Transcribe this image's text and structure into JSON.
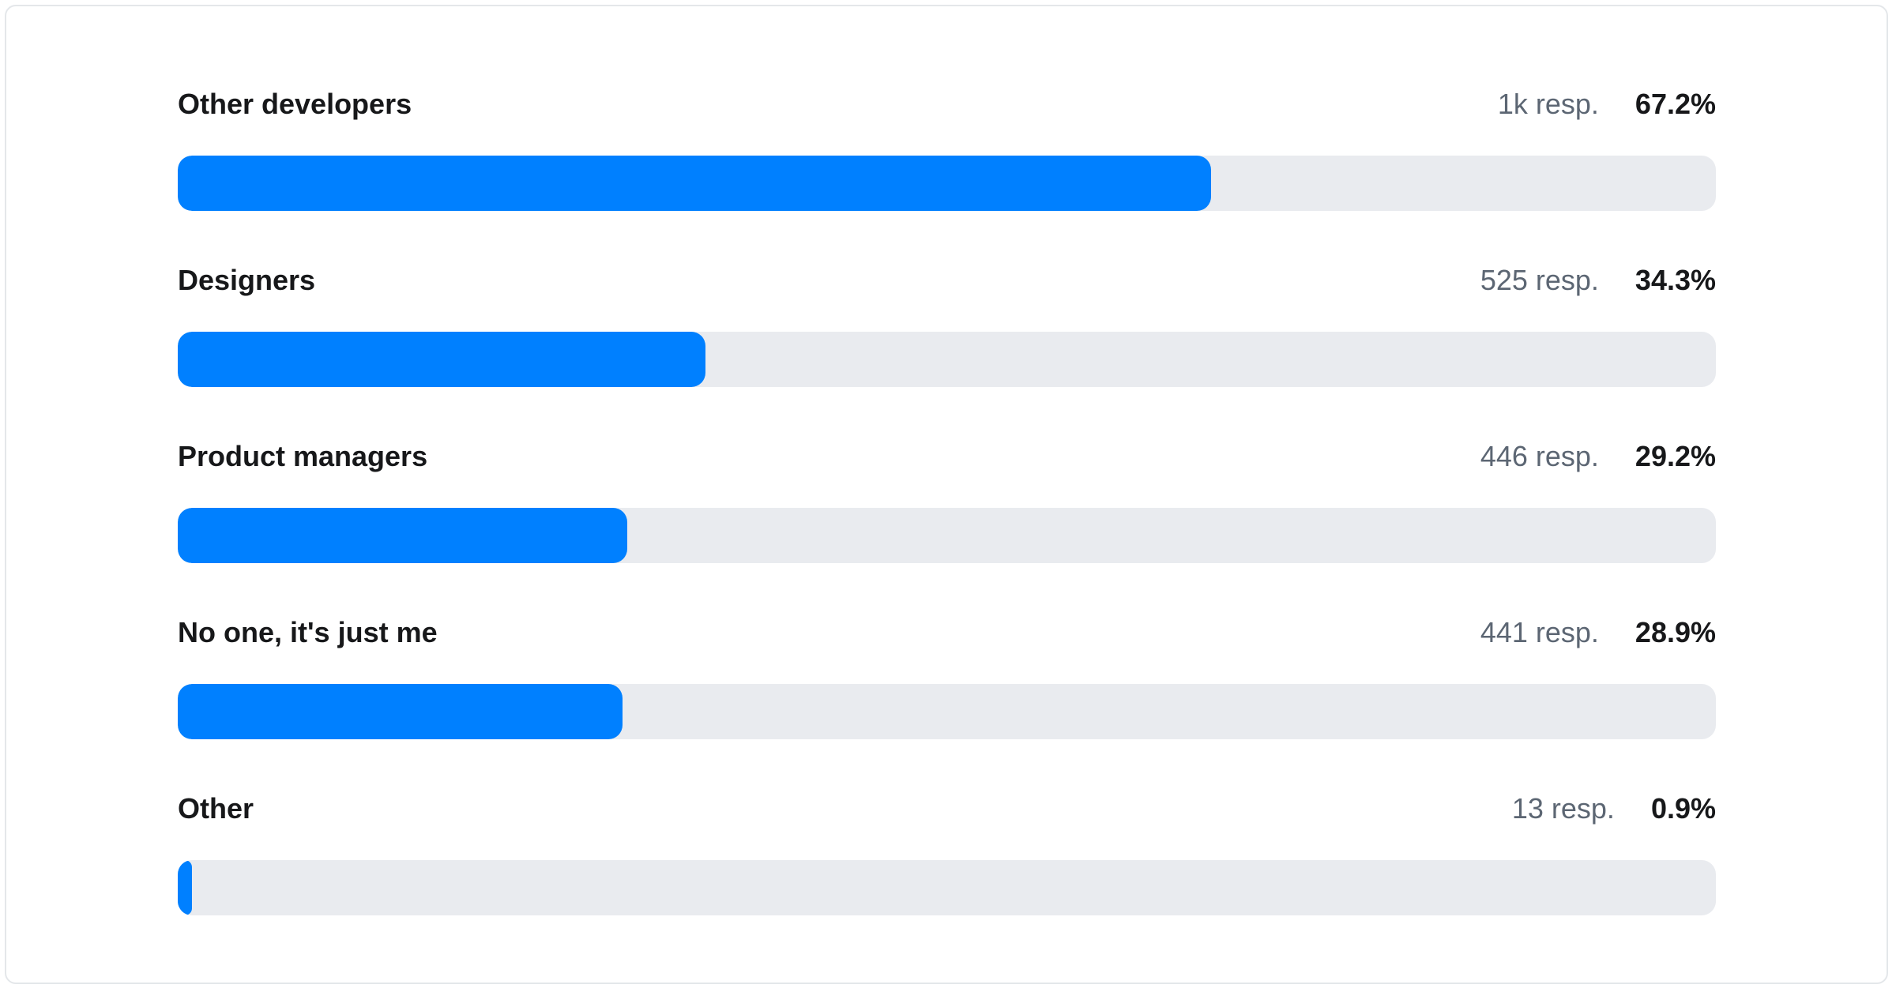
{
  "card": {
    "background": "#ffffff",
    "border_color": "#e4e7ea"
  },
  "chart_data": {
    "type": "bar",
    "orientation": "horizontal",
    "title": "",
    "xlabel": "",
    "ylabel": "",
    "xlim": [
      0,
      100
    ],
    "unit": "percent of respondents",
    "legend": false,
    "grid": false,
    "bar_color": "#0080ff",
    "track_color": "#e9ebef",
    "label_color": "#17181a",
    "responses_color": "#5c6673",
    "categories": [
      "Other developers",
      "Designers",
      "Product managers",
      "No one, it's just me",
      "Other"
    ],
    "values": [
      67.2,
      34.3,
      29.2,
      28.9,
      0.9
    ],
    "rows": [
      {
        "label": "Other developers",
        "responses": "1k resp.",
        "percent_label": "67.2%",
        "value": 67.2
      },
      {
        "label": "Designers",
        "responses": "525 resp.",
        "percent_label": "34.3%",
        "value": 34.3
      },
      {
        "label": "Product managers",
        "responses": "446 resp.",
        "percent_label": "29.2%",
        "value": 29.2
      },
      {
        "label": "No one, it's just me",
        "responses": "441 resp.",
        "percent_label": "28.9%",
        "value": 28.9
      },
      {
        "label": "Other",
        "responses": "13 resp.",
        "percent_label": "0.9%",
        "value": 0.9
      }
    ]
  }
}
